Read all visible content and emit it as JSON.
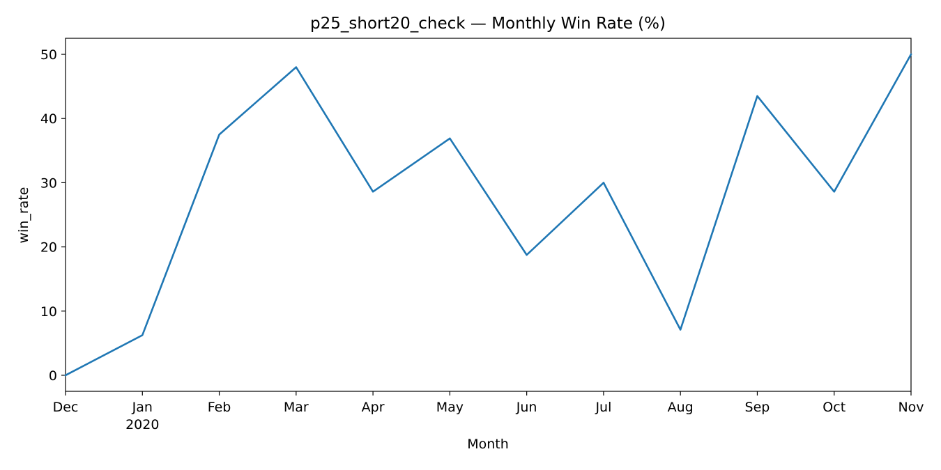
{
  "chart_data": {
    "type": "line",
    "title": "p25_short20_check — Monthly Win Rate (%)",
    "xlabel": "Month",
    "ylabel": "win_rate",
    "x": [
      "2019-12",
      "2020-01",
      "2020-02",
      "2020-03",
      "2020-04",
      "2020-05",
      "2020-06",
      "2020-07",
      "2020-08",
      "2020-09",
      "2020-10",
      "2020-11"
    ],
    "x_tick_labels": [
      "Dec",
      "Jan",
      "Feb",
      "Mar",
      "Apr",
      "May",
      "Jun",
      "Jul",
      "Aug",
      "Sep",
      "Oct",
      "Nov"
    ],
    "x_year_label": "2020",
    "series": [
      {
        "values": [
          0,
          6.25,
          37.5,
          48.0,
          28.6,
          36.9,
          18.75,
          30.0,
          7.1,
          43.5,
          28.6,
          50.0
        ],
        "color": "#1f77b4"
      }
    ],
    "ylim": [
      -2.5,
      52.5
    ],
    "y_ticks": [
      0,
      10,
      20,
      30,
      40,
      50
    ],
    "grid": false,
    "legend": "none"
  }
}
